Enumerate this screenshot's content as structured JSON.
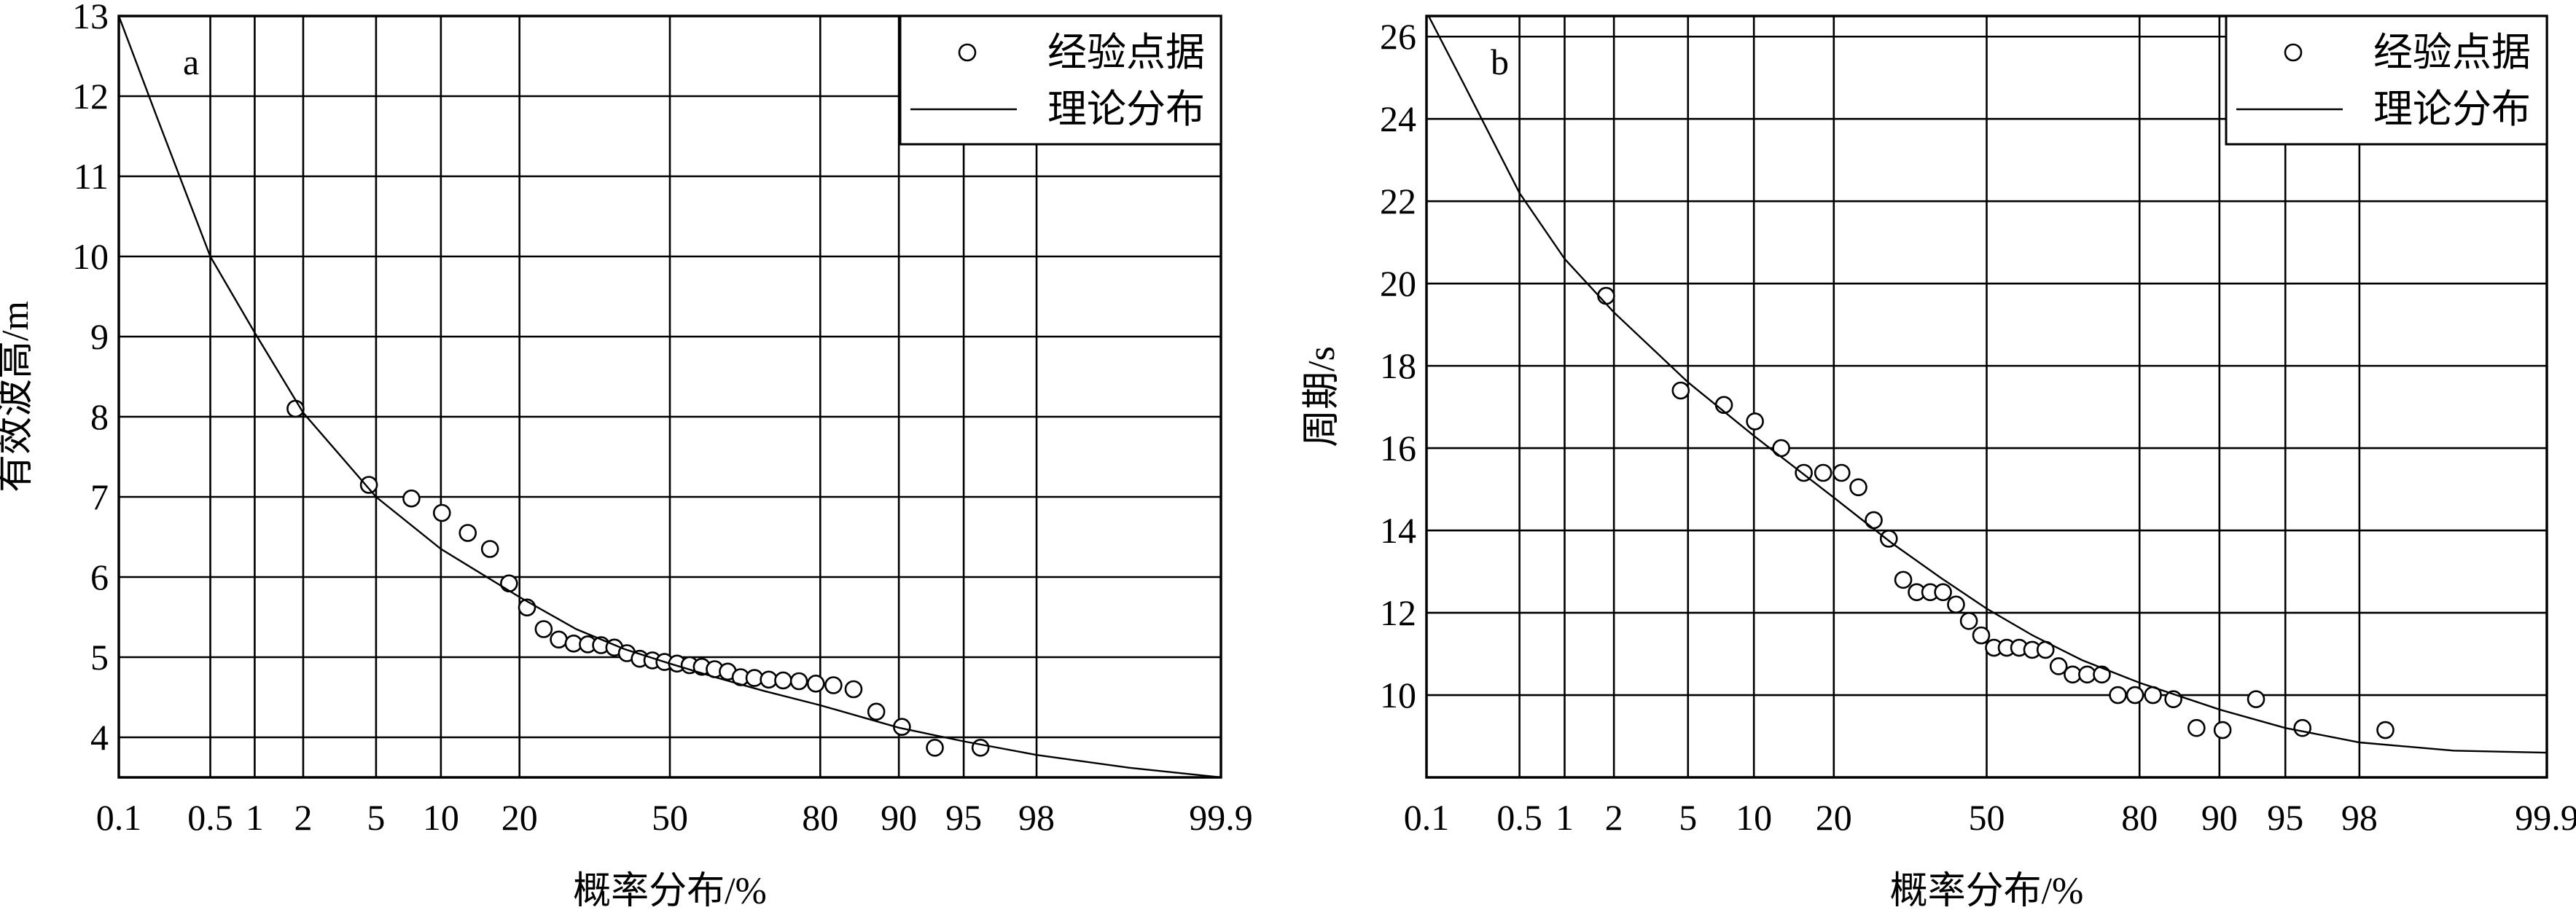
{
  "colors": {
    "line": "#000000",
    "background": "#ffffff"
  },
  "chart_data": [
    {
      "type": "scatter",
      "panel_label": "a",
      "xlabel": "概率分布/%",
      "ylabel": "有效波高/m",
      "x_scale": "normal-probability",
      "xlim": [
        0.1,
        99.9
      ],
      "x_ticks": [
        0.1,
        0.5,
        1,
        2,
        5,
        10,
        20,
        50,
        80,
        90,
        95,
        98,
        99.9
      ],
      "x_tick_labels": [
        "0.1",
        "0.5",
        "1",
        "2",
        "5",
        "10",
        "20",
        "50",
        "80",
        "90",
        "95",
        "98",
        "99.9"
      ],
      "ylim": [
        3.5,
        13
      ],
      "y_ticks": [
        4,
        5,
        6,
        7,
        8,
        9,
        10,
        11,
        12,
        13
      ],
      "y_tick_labels": [
        "4",
        "5",
        "6",
        "7",
        "8",
        "9",
        "10",
        "11",
        "12",
        "13"
      ],
      "grid": true,
      "legend": {
        "position": "top-right",
        "entries": [
          "经验点据",
          "理论分布"
        ]
      },
      "series": [
        {
          "name": "经验点据",
          "kind": "markers",
          "x": [
            1.8,
            4.6,
            7.4,
            10.1,
            12.9,
            15.7,
            18.4,
            21.2,
            24.0,
            26.7,
            29.5,
            32.3,
            35.0,
            37.8,
            40.5,
            43.3,
            46.1,
            48.8,
            51.6,
            54.4,
            57.1,
            59.9,
            62.7,
            65.4,
            68.2,
            71.0,
            73.7,
            76.5,
            79.3,
            82.0,
            84.8,
            87.6,
            90.3,
            93.1,
            95.9
          ],
          "y": [
            8.1,
            7.15,
            6.98,
            6.8,
            6.55,
            6.35,
            5.92,
            5.62,
            5.35,
            5.22,
            5.17,
            5.16,
            5.15,
            5.12,
            5.05,
            4.98,
            4.96,
            4.94,
            4.92,
            4.9,
            4.88,
            4.85,
            4.82,
            4.75,
            4.74,
            4.72,
            4.71,
            4.7,
            4.67,
            4.65,
            4.6,
            4.32,
            4.13,
            3.87,
            3.87
          ]
        },
        {
          "name": "理论分布",
          "kind": "line",
          "x": [
            0.1,
            0.2,
            0.5,
            1,
            2,
            5,
            10,
            20,
            30,
            40,
            50,
            60,
            70,
            80,
            90,
            95,
            98,
            99.5,
            99.9
          ],
          "y": [
            13.0,
            11.75,
            10.0,
            9.05,
            8.05,
            7.0,
            6.35,
            5.75,
            5.35,
            5.1,
            4.92,
            4.75,
            4.58,
            4.4,
            4.12,
            3.95,
            3.78,
            3.62,
            3.5
          ]
        }
      ]
    },
    {
      "type": "scatter",
      "panel_label": "b",
      "xlabel": "概率分布/%",
      "ylabel": "周期/s",
      "x_scale": "normal-probability",
      "xlim": [
        0.1,
        99.9
      ],
      "x_ticks": [
        0.1,
        0.5,
        1,
        2,
        5,
        10,
        20,
        50,
        80,
        90,
        95,
        98,
        99.9
      ],
      "x_tick_labels": [
        "0.1",
        "0.5",
        "1",
        "2",
        "5",
        "10",
        "20",
        "50",
        "80",
        "90",
        "95",
        "98",
        "99.9"
      ],
      "ylim": [
        8,
        26.5
      ],
      "y_ticks": [
        10,
        12,
        14,
        16,
        18,
        20,
        22,
        24,
        26
      ],
      "y_tick_labels": [
        "10",
        "12",
        "14",
        "16",
        "18",
        "20",
        "22",
        "24",
        "26"
      ],
      "grid": true,
      "legend": {
        "position": "top-right",
        "entries": [
          "经验点据",
          "理论分布"
        ]
      },
      "series": [
        {
          "name": "经验点据",
          "kind": "markers",
          "x": [
            1.8,
            4.6,
            7.4,
            10.1,
            12.9,
            15.7,
            18.4,
            21.2,
            24.0,
            26.7,
            29.5,
            32.3,
            35.0,
            37.8,
            40.5,
            43.3,
            46.1,
            48.8,
            51.6,
            54.4,
            57.1,
            59.9,
            62.7,
            65.4,
            68.2,
            71.0,
            73.7,
            76.5,
            79.3,
            82.0,
            84.8,
            87.6,
            90.3,
            93.1,
            95.9,
            98.6
          ],
          "y": [
            19.7,
            17.4,
            17.05,
            16.65,
            16.0,
            15.4,
            15.4,
            15.4,
            15.05,
            14.25,
            13.8,
            12.8,
            12.5,
            12.5,
            12.5,
            12.2,
            11.8,
            11.45,
            11.15,
            11.15,
            11.15,
            11.1,
            11.1,
            10.7,
            10.5,
            10.5,
            10.5,
            10.0,
            10.0,
            10.0,
            9.9,
            9.2,
            9.15,
            9.9,
            9.2,
            9.15
          ]
        },
        {
          "name": "理论分布",
          "kind": "line",
          "x": [
            0.1,
            0.2,
            0.5,
            1,
            2,
            5,
            10,
            20,
            30,
            40,
            50,
            60,
            70,
            80,
            90,
            95,
            98,
            99.5,
            99.9
          ],
          "y": [
            26.6,
            24.8,
            22.2,
            20.6,
            19.3,
            17.6,
            16.3,
            14.8,
            13.7,
            12.85,
            12.1,
            11.45,
            10.85,
            10.3,
            9.65,
            9.2,
            8.85,
            8.65,
            8.6
          ]
        }
      ]
    }
  ]
}
